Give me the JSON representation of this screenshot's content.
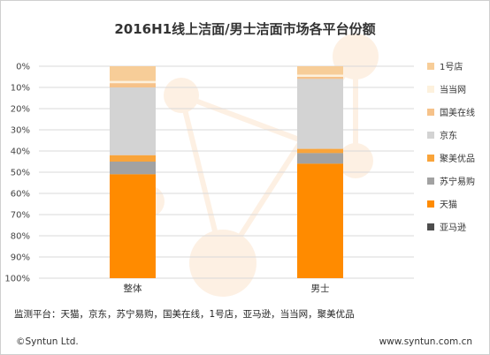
{
  "chart_data": {
    "type": "bar",
    "stacked": true,
    "title": "2016H1线上洁面/男士洁面市场各平台份额",
    "categories": [
      "整体",
      "男士"
    ],
    "y_ticks": [
      "0%",
      "10%",
      "20%",
      "30%",
      "40%",
      "50%",
      "60%",
      "70%",
      "80%",
      "90%",
      "100%"
    ],
    "ylim": [
      0,
      100
    ],
    "y_direction": "top-to-bottom",
    "series": [
      {
        "name": "1号店",
        "color": "#f7cd98",
        "values": [
          7,
          4
        ]
      },
      {
        "name": "当当网",
        "color": "#fdf1dd",
        "values": [
          1,
          1
        ]
      },
      {
        "name": "国美在线",
        "color": "#f6c28a",
        "values": [
          2,
          1
        ]
      },
      {
        "name": "京东",
        "color": "#d3d3d3",
        "values": [
          32,
          33
        ]
      },
      {
        "name": "聚美优品",
        "color": "#f9a43a",
        "values": [
          3,
          2
        ]
      },
      {
        "name": "苏宁易购",
        "color": "#a2a2a2",
        "values": [
          6,
          5
        ]
      },
      {
        "name": "天猫",
        "color": "#ff8b00",
        "values": [
          49,
          54
        ]
      },
      {
        "name": "亚马逊",
        "color": "#4d4d4d",
        "values": [
          0,
          0
        ]
      }
    ]
  },
  "footer": {
    "platforms": "监测平台：天猫，京东，苏宁易购，国美在线，1号店，亚马逊，当当网，聚美优品",
    "copyright": "©Syntun Ltd.",
    "website": "www.syntun.com.cn"
  }
}
